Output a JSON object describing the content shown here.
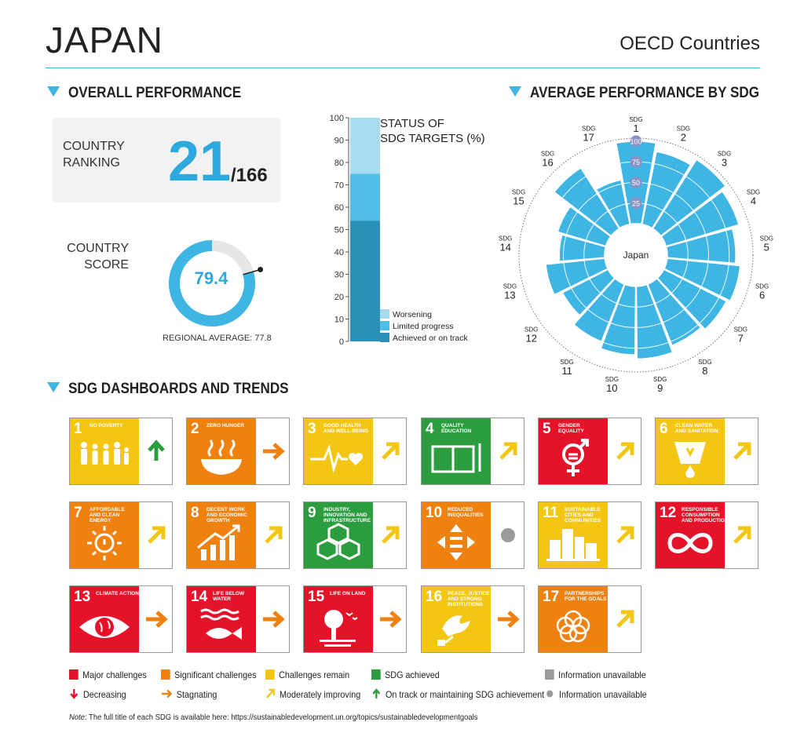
{
  "header": {
    "country": "JAPAN",
    "group": "OECD Countries"
  },
  "sections": {
    "overall": "OVERALL PERFORMANCE",
    "average": "AVERAGE PERFORMANCE BY SDG",
    "dashboards": "SDG DASHBOARDS AND TRENDS"
  },
  "ranking": {
    "label_line1": "COUNTRY",
    "label_line2": "RANKING",
    "value": "21",
    "total": "/166"
  },
  "score": {
    "label_line1": "COUNTRY",
    "label_line2": "SCORE",
    "value": "79.4",
    "percent": 79.4,
    "regional_average": "REGIONAL AVERAGE: 77.8"
  },
  "colors": {
    "accent": "#3fb5e3",
    "worsening": "#a7dbf0",
    "limited": "#4fbde8",
    "achieved": "#2a90b5",
    "major": "#e5132a",
    "significant": "#ef8110",
    "remain": "#f3c614",
    "achieved_sdg": "#2b9d3f",
    "unavailable": "#9a9a9a"
  },
  "chart_data": [
    {
      "type": "bar",
      "title": "STATUS OF SDG TARGETS (%)",
      "title_line1": "STATUS OF",
      "title_line2": "SDG TARGETS (%)",
      "ylim": [
        0,
        100
      ],
      "yticks": [
        "0",
        "10",
        "20",
        "30",
        "40",
        "50",
        "60",
        "70",
        "80",
        "90",
        "100"
      ],
      "stacked": true,
      "series": [
        {
          "name": "Achieved or on track",
          "value": 54
        },
        {
          "name": "Limited progress",
          "value": 21
        },
        {
          "name": "Worsening",
          "value": 25
        }
      ]
    },
    {
      "type": "bar",
      "subtype": "radial",
      "center_label": "Japan",
      "rmax": 100,
      "ring_ticks": [
        "25",
        "50",
        "75",
        "100"
      ],
      "sdg_prefix": "SDG",
      "categories": [
        "1",
        "2",
        "3",
        "4",
        "5",
        "6",
        "7",
        "8",
        "9",
        "10",
        "11",
        "12",
        "13",
        "14",
        "15",
        "16",
        "17"
      ],
      "values": [
        100,
        90,
        99,
        92,
        83,
        89,
        85,
        80,
        88,
        83,
        75,
        62,
        72,
        55,
        61,
        87,
        55
      ]
    }
  ],
  "tiles": [
    {
      "num": "1",
      "title": "NO POVERTY",
      "color": "#e5243b",
      "rating": "remain",
      "trend": "on_track",
      "glyph": "people-icon"
    },
    {
      "num": "2",
      "title": "ZERO HUNGER",
      "color": "#dda63a",
      "rating": "significant",
      "trend": "stagnating",
      "glyph": "bowl-icon"
    },
    {
      "num": "3",
      "title": "GOOD HEALTH AND WELL-BEING",
      "color": "#4c9f38",
      "rating": "remain",
      "trend": "moderate",
      "glyph": "heartbeat-icon"
    },
    {
      "num": "4",
      "title": "QUALITY EDUCATION",
      "color": "#c5192d",
      "rating": "achieved_sdg",
      "trend": "moderate",
      "glyph": "book-icon"
    },
    {
      "num": "5",
      "title": "GENDER EQUALITY",
      "color": "#ff3a21",
      "rating": "major",
      "trend": "moderate",
      "glyph": "gender-icon"
    },
    {
      "num": "6",
      "title": "CLEAN WATER AND SANITATION",
      "color": "#26bde2",
      "rating": "remain",
      "trend": "moderate",
      "glyph": "water-icon"
    },
    {
      "num": "7",
      "title": "AFFORDABLE AND CLEAN ENERGY",
      "color": "#fcc30b",
      "rating": "significant",
      "trend": "moderate",
      "glyph": "sun-icon"
    },
    {
      "num": "8",
      "title": "DECENT WORK AND ECONOMIC GROWTH",
      "color": "#a21942",
      "rating": "significant",
      "trend": "moderate",
      "glyph": "growth-icon"
    },
    {
      "num": "9",
      "title": "INDUSTRY, INNOVATION AND INFRASTRUCTURE",
      "color": "#fd6925",
      "rating": "achieved_sdg",
      "trend": "moderate",
      "glyph": "cubes-icon"
    },
    {
      "num": "10",
      "title": "REDUCED INEQUALITIES",
      "color": "#dd1367",
      "rating": "significant",
      "trend": "unavailable",
      "glyph": "equal-icon"
    },
    {
      "num": "11",
      "title": "SUSTAINABLE CITIES AND COMMUNITIES",
      "color": "#fd9d24",
      "rating": "remain",
      "trend": "moderate",
      "glyph": "city-icon"
    },
    {
      "num": "12",
      "title": "RESPONSIBLE CONSUMPTION AND PRODUCTION",
      "color": "#bf8b2e",
      "rating": "major",
      "trend": "moderate",
      "glyph": "infinity-icon"
    },
    {
      "num": "13",
      "title": "CLIMATE ACTION",
      "color": "#3f7e44",
      "rating": "major",
      "trend": "stagnating",
      "glyph": "eye-globe-icon"
    },
    {
      "num": "14",
      "title": "LIFE BELOW WATER",
      "color": "#0a97d9",
      "rating": "major",
      "trend": "stagnating",
      "glyph": "fish-icon"
    },
    {
      "num": "15",
      "title": "LIFE ON LAND",
      "color": "#56c02b",
      "rating": "major",
      "trend": "stagnating",
      "glyph": "tree-icon"
    },
    {
      "num": "16",
      "title": "PEACE, JUSTICE AND STRONG INSTITUTIONS",
      "color": "#00689d",
      "rating": "remain",
      "trend": "stagnating",
      "glyph": "dove-icon"
    },
    {
      "num": "17",
      "title": "PARTNERSHIPS FOR THE GOALS",
      "color": "#19486a",
      "rating": "significant",
      "trend": "moderate",
      "glyph": "rings-icon"
    }
  ],
  "legend": {
    "major": "Major challenges",
    "significant": "Significant challenges",
    "remain": "Challenges remain",
    "achieved": "SDG achieved",
    "unavailable_box": "Information unavailable",
    "decreasing": "Decreasing",
    "stagnating": "Stagnating",
    "moderate": "Moderately improving",
    "on_track": "On track or maintaining SDG achievement",
    "unavailable_dot": "Information unavailable"
  },
  "note": {
    "label": "Note",
    "text": ": The full title of each SDG is available here: https://sustainabledevelopment.un.org/topics/sustainabledevelopmentgoals"
  }
}
